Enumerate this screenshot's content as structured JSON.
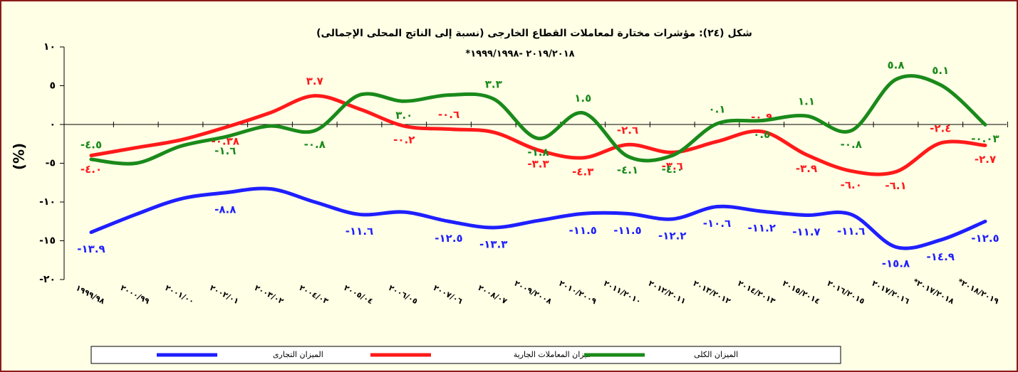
{
  "chart_data": {
    "type": "line",
    "title": "شكل (٢٤): مؤشرات مختارة لمعاملات القطاع الخارجى (نسبة إلى الناتج المحلى الإجمالى)",
    "subtitle": "*٢٠١٩/٢٠١٨ -١٩٩٩/١٩٩٨",
    "y_label": "(%)",
    "categories": [
      "١٩٩٩/٩٨",
      "٢٠٠٠/٩٩",
      "٢٠٠١/٠٠",
      "٢٠٠٢/٠١",
      "٢٠٠٣/٠٢",
      "٢٠٠٤/٠٣",
      "٢٠٠٥/٠٤",
      "٢٠٠٦/٠٥",
      "٢٠٠٧/٠٦",
      "٢٠٠٨/٠٧",
      "٢٠٠٩/٢٠٠٨",
      "٢٠١٠/٢٠٠٩",
      "٢٠١١/٢٠١٠",
      "٢٠١٢/٢٠١١",
      "٢٠١٣/٢٠١٢",
      "٢٠١٤/٢٠١٣",
      "٢٠١٥/٢٠١٤",
      "٢٠١٦/٢٠١٥",
      "٢٠١٧/٢٠١٦",
      "*٢٠١٧/٢٠١٨",
      "*٢٠١٨/٢٠١٩"
    ],
    "ylim": [
      -20,
      10
    ],
    "yticks": [
      {
        "value": 10,
        "label": "١٠"
      },
      {
        "value": 5,
        "label": "٥"
      },
      {
        "value": 0,
        "label": "٠"
      },
      {
        "value": -5,
        "label": "-٥"
      },
      {
        "value": -10,
        "label": "-١٠"
      },
      {
        "value": -15,
        "label": "-١٥"
      },
      {
        "value": -20,
        "label": "-٢٠"
      }
    ],
    "series": [
      {
        "name": "الميزان التجارى",
        "color": "#1f1fff",
        "values": [
          -13.9,
          -11.6,
          -9.6,
          -8.8,
          -8.3,
          -10.0,
          -11.6,
          -11.3,
          -12.5,
          -13.3,
          -12.4,
          -11.5,
          -11.5,
          -12.2,
          -10.6,
          -11.2,
          -11.7,
          -11.6,
          -15.8,
          -14.9,
          -12.5
        ],
        "value_labels": [
          "-١٣.٩",
          null,
          null,
          "-٨.٨",
          null,
          null,
          "-١١.٦",
          null,
          "-١٢.٥",
          "-١٣.٣",
          null,
          "-١١.٥",
          "-١١.٥",
          "-١٢.٢",
          "-١٠.٦",
          "-١١.٢",
          "-١١.٧",
          "-١١.٦",
          "-١٥.٨",
          "-١٤.٩",
          "-١٢.٥"
        ]
      },
      {
        "name": "ميزان المعاملات الجارية",
        "color": "#ff1a1a",
        "values": [
          -4.0,
          -3.0,
          -2.0,
          -0.38,
          1.5,
          3.7,
          2.0,
          -0.2,
          -0.6,
          -1.0,
          -3.3,
          -4.3,
          -2.6,
          -3.6,
          -2.2,
          -0.9,
          -3.9,
          -6.0,
          -6.1,
          -2.4,
          -2.7
        ],
        "value_labels": [
          "-٤.٠",
          null,
          null,
          "-٠.٣٨",
          null,
          "٣.٧",
          null,
          "-٠.٢",
          "-٠.٦",
          null,
          "-٣.٣",
          "-٤.٣",
          "-٢.٦",
          "-٣.٦",
          null,
          "-٠.٩",
          "-٣.٩",
          "-٦.٠",
          "-٦.١",
          "-٢.٤",
          "-٢.٧"
        ]
      },
      {
        "name": "الميزان الكلى",
        "color": "#1a8a1a",
        "values": [
          -4.5,
          -5.0,
          -2.8,
          -1.6,
          -0.2,
          -0.8,
          3.8,
          3.0,
          3.8,
          3.3,
          -1.8,
          1.5,
          -4.1,
          -4.0,
          0.1,
          0.5,
          1.1,
          -0.8,
          5.8,
          5.1,
          -0.03
        ],
        "value_labels": [
          "-٤.٥",
          null,
          null,
          "-١.٦",
          null,
          "-٠.٨",
          null,
          "٣.٠",
          null,
          "٣.٣",
          "-١.٨",
          "١.٥",
          "-٤.١",
          "-٤.٠",
          "٠.١",
          "٠.٥",
          "١.١",
          "-٠.٨",
          "٥.٨",
          "٥.١",
          "-٠.٠٣"
        ]
      }
    ]
  }
}
